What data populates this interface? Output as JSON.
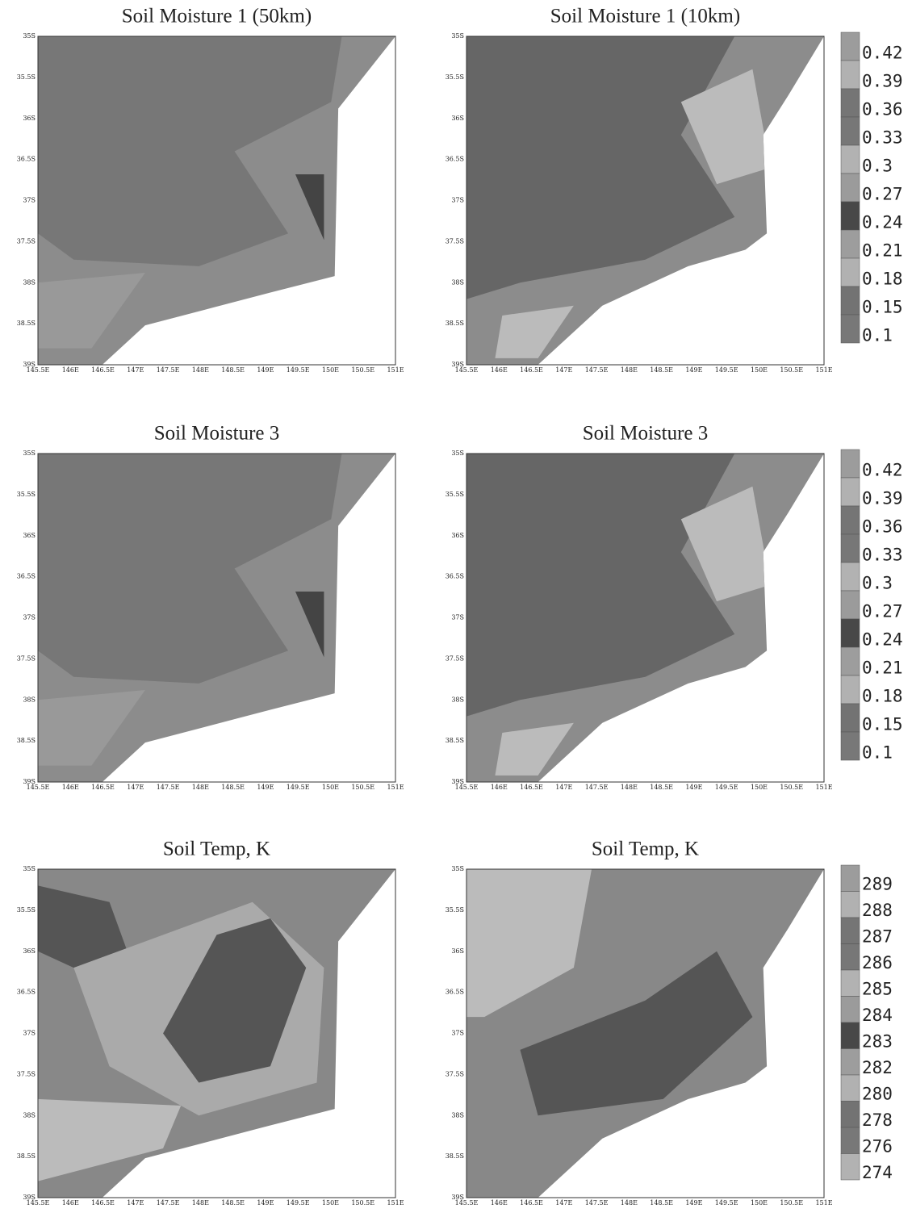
{
  "panels": [
    {
      "title": "Soil Moisture 1 (50km)"
    },
    {
      "title": "Soil Moisture 1 (10km)"
    },
    {
      "title": "Soil Moisture 3"
    },
    {
      "title": "Soil Moisture 3"
    },
    {
      "title": "Soil Temp, K"
    },
    {
      "title": "Soil Temp, K"
    }
  ],
  "yticks": [
    "35S",
    "35.5S",
    "36S",
    "36.5S",
    "37S",
    "37.5S",
    "38S",
    "38.5S",
    "39S"
  ],
  "xticks": [
    "145.5E",
    "146E",
    "146.5E",
    "147E",
    "147.5E",
    "148E",
    "148.5E",
    "149E",
    "149.5E",
    "150E",
    "150.5E",
    "151E"
  ],
  "colorbars": [
    {
      "levels": [
        0.42,
        0.39,
        0.36,
        0.33,
        0.3,
        0.27,
        0.24,
        0.21,
        0.18,
        0.15,
        0.1
      ]
    },
    {
      "levels": [
        0.42,
        0.39,
        0.36,
        0.33,
        0.3,
        0.27,
        0.24,
        0.21,
        0.18,
        0.15,
        0.1
      ]
    },
    {
      "levels": [
        289,
        288,
        287,
        286,
        285,
        284,
        283,
        282,
        280,
        278,
        276,
        274
      ]
    }
  ]
}
